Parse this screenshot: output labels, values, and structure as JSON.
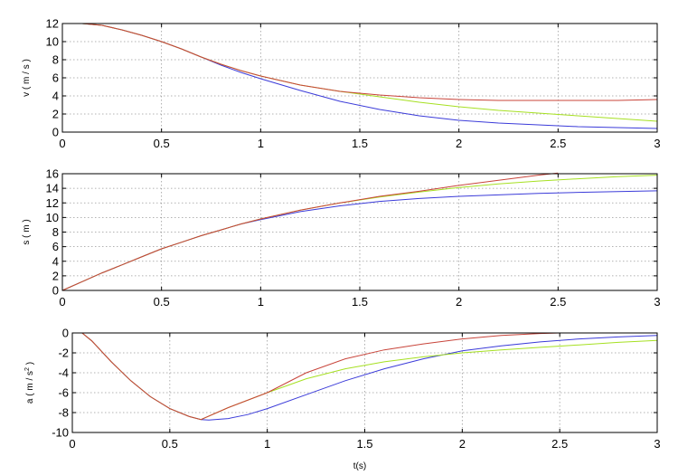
{
  "chart_data": [
    {
      "type": "line",
      "title": "",
      "xlabel": "",
      "ylabel": "v ( m / s )",
      "xlim": [
        0,
        3
      ],
      "ylim": [
        0,
        12
      ],
      "xticks": [
        0,
        0.5,
        1,
        1.5,
        2,
        2.5,
        3
      ],
      "xtick_labels": [
        "0",
        "0.5",
        "1",
        "1.5",
        "2",
        "2.5",
        "3"
      ],
      "yticks": [
        0,
        2,
        4,
        6,
        8,
        10,
        12
      ],
      "ytick_labels": [
        "0",
        "2",
        "4",
        "6",
        "8",
        "10",
        "12"
      ],
      "grid": true,
      "series": [
        {
          "color": "#3b3bd9",
          "x": [
            0,
            0.1,
            0.2,
            0.3,
            0.4,
            0.5,
            0.6,
            0.7,
            0.8,
            0.9,
            1.0,
            1.2,
            1.4,
            1.6,
            1.8,
            2.0,
            2.2,
            2.4,
            2.6,
            2.8,
            3.0
          ],
          "y": [
            12,
            12,
            11.8,
            11.3,
            10.7,
            10.0,
            9.2,
            8.3,
            7.4,
            6.6,
            5.9,
            4.6,
            3.4,
            2.5,
            1.8,
            1.3,
            1.0,
            0.8,
            0.6,
            0.5,
            0.4
          ]
        },
        {
          "color": "#a6e022",
          "x": [
            0,
            0.1,
            0.2,
            0.3,
            0.4,
            0.5,
            0.6,
            0.7,
            0.8,
            0.9,
            1.0,
            1.2,
            1.4,
            1.6,
            1.8,
            2.0,
            2.2,
            2.4,
            2.6,
            2.8,
            3.0
          ],
          "y": [
            12,
            12,
            11.8,
            11.3,
            10.7,
            10.0,
            9.2,
            8.3,
            7.5,
            6.8,
            6.2,
            5.2,
            4.5,
            3.9,
            3.3,
            2.8,
            2.4,
            2.1,
            1.8,
            1.5,
            1.2
          ]
        },
        {
          "color": "#c8443a",
          "x": [
            0,
            0.1,
            0.2,
            0.3,
            0.4,
            0.5,
            0.6,
            0.7,
            0.8,
            0.9,
            1.0,
            1.2,
            1.4,
            1.6,
            1.8,
            2.0,
            2.2,
            2.4,
            2.6,
            2.8,
            3.0
          ],
          "y": [
            12,
            12,
            11.8,
            11.3,
            10.7,
            10.0,
            9.2,
            8.3,
            7.5,
            6.8,
            6.2,
            5.2,
            4.5,
            4.1,
            3.8,
            3.6,
            3.5,
            3.5,
            3.5,
            3.5,
            3.6
          ]
        }
      ]
    },
    {
      "type": "line",
      "title": "",
      "xlabel": "",
      "ylabel": "s ( m )",
      "xlim": [
        0,
        3
      ],
      "ylim": [
        0,
        16
      ],
      "xticks": [
        0,
        0.5,
        1,
        1.5,
        2,
        2.5,
        3
      ],
      "xtick_labels": [
        "0",
        "0.5",
        "1",
        "1.5",
        "2",
        "2.5",
        "3"
      ],
      "yticks": [
        0,
        2,
        4,
        6,
        8,
        10,
        12,
        14,
        16
      ],
      "ytick_labels": [
        "0",
        "2",
        "4",
        "6",
        "8",
        "10",
        "12",
        "14",
        "16"
      ],
      "grid": true,
      "series": [
        {
          "color": "#3b3bd9",
          "x": [
            0,
            0.1,
            0.2,
            0.3,
            0.4,
            0.5,
            0.6,
            0.7,
            0.8,
            0.9,
            1.0,
            1.2,
            1.4,
            1.6,
            1.8,
            2.0,
            2.2,
            2.4,
            2.6,
            2.8,
            3.0
          ],
          "y": [
            0,
            1.2,
            2.4,
            3.5,
            4.6,
            5.7,
            6.6,
            7.5,
            8.3,
            9.1,
            9.7,
            10.8,
            11.6,
            12.2,
            12.6,
            12.9,
            13.1,
            13.3,
            13.45,
            13.55,
            13.65
          ]
        },
        {
          "color": "#a6e022",
          "x": [
            0,
            0.1,
            0.2,
            0.3,
            0.4,
            0.5,
            0.6,
            0.7,
            0.8,
            0.9,
            1.0,
            1.2,
            1.4,
            1.6,
            1.8,
            2.0,
            2.2,
            2.4,
            2.6,
            2.8,
            3.0
          ],
          "y": [
            0,
            1.2,
            2.4,
            3.5,
            4.6,
            5.7,
            6.6,
            7.5,
            8.3,
            9.1,
            9.8,
            11.0,
            12.0,
            12.8,
            13.5,
            14.1,
            14.6,
            15.0,
            15.3,
            15.6,
            15.8
          ]
        },
        {
          "color": "#c8443a",
          "x": [
            0,
            0.1,
            0.2,
            0.3,
            0.4,
            0.5,
            0.6,
            0.7,
            0.8,
            0.9,
            1.0,
            1.2,
            1.4,
            1.6,
            1.8,
            2.0,
            2.2,
            2.4,
            2.5
          ],
          "y": [
            0,
            1.2,
            2.4,
            3.5,
            4.6,
            5.7,
            6.6,
            7.5,
            8.3,
            9.1,
            9.8,
            11.0,
            12.0,
            12.9,
            13.6,
            14.4,
            15.1,
            15.8,
            16.1
          ]
        }
      ]
    },
    {
      "type": "line",
      "title": "",
      "xlabel": "t(s)",
      "ylabel": "a ( m / s",
      "ylabel_sup": "2",
      "ylabel_end": " )",
      "xlim": [
        0,
        3
      ],
      "ylim": [
        -10,
        0
      ],
      "xticks": [
        0,
        0.5,
        1,
        1.5,
        2,
        2.5,
        3
      ],
      "xtick_labels": [
        "0",
        "0.5",
        "1",
        "1.5",
        "2",
        "2.5",
        "3"
      ],
      "yticks": [
        -10,
        -8,
        -6,
        -4,
        -2,
        0
      ],
      "ytick_labels": [
        "-10",
        "-8",
        "-6",
        "-4",
        "-2",
        "0"
      ],
      "grid": true,
      "series": [
        {
          "color": "#3b3bd9",
          "x": [
            0.05,
            0.1,
            0.2,
            0.3,
            0.4,
            0.5,
            0.6,
            0.66,
            0.7,
            0.8,
            0.9,
            1.0,
            1.2,
            1.4,
            1.6,
            1.8,
            2.0,
            2.2,
            2.4,
            2.6,
            2.8,
            3.0
          ],
          "y": [
            0,
            -0.8,
            -2.9,
            -4.8,
            -6.4,
            -7.6,
            -8.4,
            -8.7,
            -8.75,
            -8.6,
            -8.2,
            -7.6,
            -6.2,
            -4.8,
            -3.6,
            -2.6,
            -1.8,
            -1.3,
            -0.9,
            -0.6,
            -0.4,
            -0.25
          ]
        },
        {
          "color": "#a6e022",
          "x": [
            0.05,
            0.1,
            0.2,
            0.3,
            0.4,
            0.5,
            0.6,
            0.66,
            0.8,
            1.0,
            1.2,
            1.4,
            1.6,
            1.8,
            2.0,
            2.2,
            2.4,
            2.6,
            2.8,
            3.0
          ],
          "y": [
            0,
            -0.8,
            -2.9,
            -4.8,
            -6.4,
            -7.6,
            -8.4,
            -8.7,
            -7.5,
            -6.0,
            -4.6,
            -3.6,
            -2.9,
            -2.4,
            -2.0,
            -1.7,
            -1.45,
            -1.2,
            -0.95,
            -0.75
          ]
        },
        {
          "color": "#c8443a",
          "x": [
            0.05,
            0.1,
            0.2,
            0.3,
            0.4,
            0.5,
            0.6,
            0.66,
            0.8,
            1.0,
            1.2,
            1.4,
            1.6,
            1.8,
            2.0,
            2.2,
            2.4,
            2.5
          ],
          "y": [
            0,
            -0.8,
            -2.9,
            -4.8,
            -6.4,
            -7.6,
            -8.4,
            -8.7,
            -7.5,
            -6.0,
            -4.0,
            -2.6,
            -1.7,
            -1.1,
            -0.6,
            -0.25,
            -0.05,
            0
          ]
        }
      ]
    }
  ]
}
